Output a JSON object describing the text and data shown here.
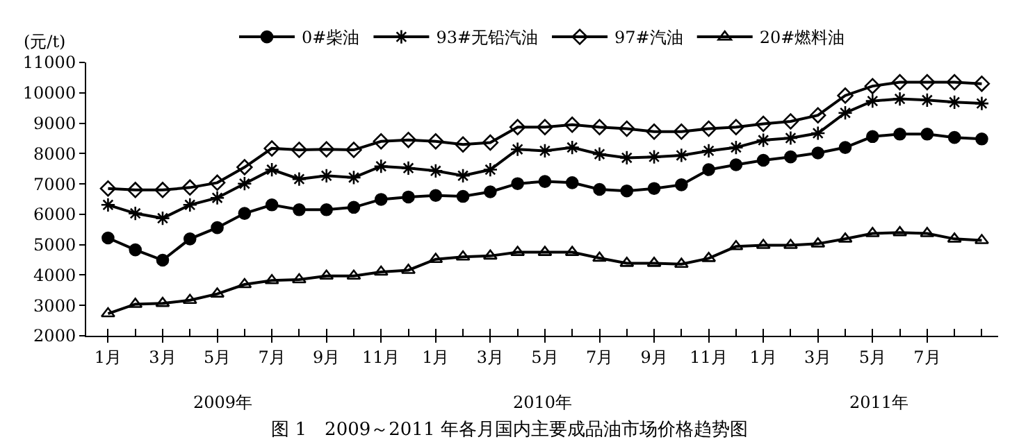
{
  "chart_data": {
    "type": "line",
    "title": "图 1　2009～2011 年各月国内主要成品油市场价格趋势图",
    "ylabel": "(元/t)",
    "annotations": [
      "2009年",
      "2010年",
      "2011年"
    ],
    "categories": [
      "1月",
      null,
      "3月",
      null,
      "5月",
      null,
      "7月",
      null,
      "9月",
      null,
      "11月",
      null,
      "1月",
      null,
      "3月",
      null,
      "5月",
      null,
      "7月",
      null,
      "9月",
      null,
      "11月",
      null,
      "1月",
      null,
      "3月",
      null,
      "5月",
      null,
      "7月",
      null,
      null
    ],
    "series": [
      {
        "name": "0#柴油",
        "color": "#000000",
        "marker": "circle",
        "values": [
          5220,
          4830,
          4490,
          5190,
          5560,
          6030,
          6310,
          6150,
          6150,
          6230,
          6490,
          6570,
          6620,
          6590,
          6740,
          7010,
          7080,
          7040,
          6820,
          6770,
          6850,
          6970,
          7470,
          7630,
          7780,
          7890,
          8020,
          8200,
          8560,
          8640,
          8640,
          8530,
          8480
        ]
      },
      {
        "name": "93#无铅汽油",
        "color": "#000000",
        "marker": "cross",
        "values": [
          6310,
          6030,
          5870,
          6310,
          6540,
          7010,
          7470,
          7160,
          7270,
          7210,
          7580,
          7520,
          7430,
          7270,
          7470,
          8140,
          8090,
          8200,
          7980,
          7860,
          7890,
          7940,
          8090,
          8200,
          8440,
          8510,
          8670,
          9340,
          9730,
          9800,
          9760,
          9690,
          9650
        ]
      },
      {
        "name": "97#汽油",
        "color": "#000000",
        "marker": "diamond",
        "values": [
          6850,
          6800,
          6800,
          6880,
          7040,
          7550,
          8170,
          8120,
          8140,
          8120,
          8400,
          8450,
          8400,
          8300,
          8360,
          8870,
          8870,
          8950,
          8870,
          8820,
          8720,
          8720,
          8820,
          8870,
          8980,
          9060,
          9260,
          9910,
          10220,
          10350,
          10350,
          10350,
          10300
        ]
      },
      {
        "name": "20#燃料油",
        "color": "#000000",
        "marker": "triangle",
        "values": [
          2730,
          3040,
          3070,
          3170,
          3380,
          3690,
          3820,
          3850,
          3970,
          3970,
          4100,
          4160,
          4520,
          4600,
          4630,
          4750,
          4750,
          4750,
          4560,
          4390,
          4390,
          4360,
          4550,
          4940,
          4980,
          4980,
          5030,
          5190,
          5370,
          5400,
          5370,
          5190,
          5140
        ]
      }
    ],
    "ylim": [
      2000,
      11000
    ],
    "yticks": [
      2000,
      3000,
      4000,
      5000,
      6000,
      7000,
      8000,
      9000,
      10000,
      11000
    ],
    "legend": "top",
    "line_style": "solid"
  }
}
